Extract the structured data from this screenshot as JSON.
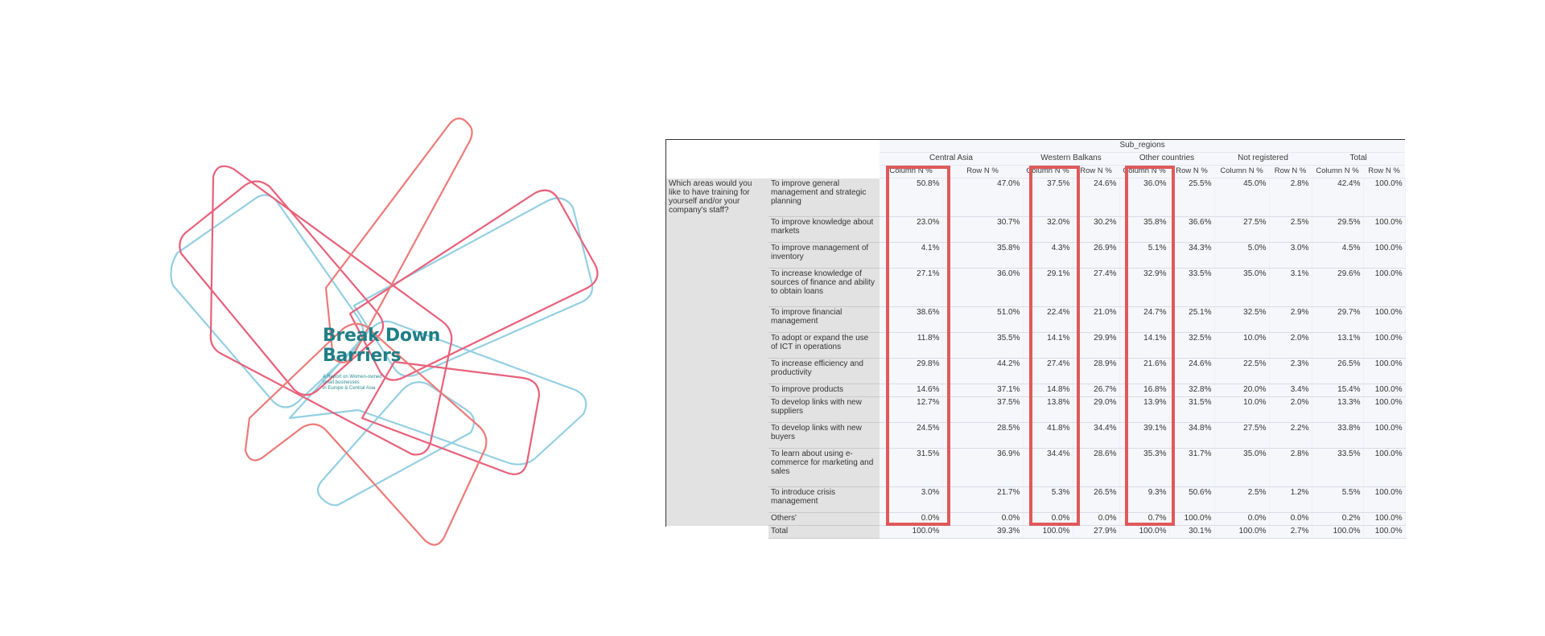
{
  "brand": {
    "title_line1": "Break Down",
    "title_line2": "Barriers",
    "subtitle_lines": [
      "A Report on Women-owned",
      "small businesses",
      "in Europe & Central Asia"
    ],
    "colors": {
      "teal": "#1f7f86",
      "pink": "#e8607a",
      "blue": "#93cfe3",
      "coral": "#ec7a78"
    }
  },
  "table": {
    "top_header": "Sub_regions",
    "regions": [
      "Central Asia",
      "Western Balkans",
      "Other countries",
      "Not registered",
      "Total"
    ],
    "col_headers": [
      "Column N %",
      "Row N %"
    ],
    "question": "Which areas would you like to have training for yourself and/or your company's staff?",
    "rows": [
      {
        "label": "To improve general management and strategic planning",
        "values": [
          "50.8%",
          "47.0%",
          "37.5%",
          "24.6%",
          "36.0%",
          "25.5%",
          "45.0%",
          "2.8%",
          "42.4%",
          "100.0%"
        ]
      },
      {
        "label": "To improve knowledge about markets",
        "values": [
          "23.0%",
          "30.7%",
          "32.0%",
          "30.2%",
          "35.8%",
          "36.6%",
          "27.5%",
          "2.5%",
          "29.5%",
          "100.0%"
        ]
      },
      {
        "label": "To improve management of inventory",
        "values": [
          "4.1%",
          "35.8%",
          "4.3%",
          "26.9%",
          "5.1%",
          "34.3%",
          "5.0%",
          "3.0%",
          "4.5%",
          "100.0%"
        ]
      },
      {
        "label": "To increase knowledge of sources of finance and ability to obtain loans",
        "values": [
          "27.1%",
          "36.0%",
          "29.1%",
          "27.4%",
          "32.9%",
          "33.5%",
          "35.0%",
          "3.1%",
          "29.6%",
          "100.0%"
        ]
      },
      {
        "label": "To improve financial management",
        "values": [
          "38.6%",
          "51.0%",
          "22.4%",
          "21.0%",
          "24.7%",
          "25.1%",
          "32.5%",
          "2.9%",
          "29.7%",
          "100.0%"
        ]
      },
      {
        "label": "To adopt or expand the use of ICT in operations",
        "values": [
          "11.8%",
          "35.5%",
          "14.1%",
          "29.9%",
          "14.1%",
          "32.5%",
          "10.0%",
          "2.0%",
          "13.1%",
          "100.0%"
        ]
      },
      {
        "label": "To increase efficiency and productivity",
        "values": [
          "29.8%",
          "44.2%",
          "27.4%",
          "28.9%",
          "21.6%",
          "24.6%",
          "22.5%",
          "2.3%",
          "26.5%",
          "100.0%"
        ]
      },
      {
        "label": "To improve products",
        "values": [
          "14.6%",
          "37.1%",
          "14.8%",
          "26.7%",
          "16.8%",
          "32.8%",
          "20.0%",
          "3.4%",
          "15.4%",
          "100.0%"
        ]
      },
      {
        "label": "To develop links with new suppliers",
        "values": [
          "12.7%",
          "37.5%",
          "13.8%",
          "29.0%",
          "13.9%",
          "31.5%",
          "10.0%",
          "2.0%",
          "13.3%",
          "100.0%"
        ]
      },
      {
        "label": "To develop links with new buyers",
        "values": [
          "24.5%",
          "28.5%",
          "41.8%",
          "34.4%",
          "39.1%",
          "34.8%",
          "27.5%",
          "2.2%",
          "33.8%",
          "100.0%"
        ]
      },
      {
        "label": "To learn about using e-commerce for marketing and sales",
        "values": [
          "31.5%",
          "36.9%",
          "34.4%",
          "28.6%",
          "35.3%",
          "31.7%",
          "35.0%",
          "2.8%",
          "33.5%",
          "100.0%"
        ]
      },
      {
        "label": "To introduce crisis management",
        "values": [
          "3.0%",
          "21.7%",
          "5.3%",
          "26.5%",
          "9.3%",
          "50.6%",
          "2.5%",
          "1.2%",
          "5.5%",
          "100.0%"
        ]
      },
      {
        "label": "Others'",
        "values": [
          "0.0%",
          "0.0%",
          "0.0%",
          "0.0%",
          "0.7%",
          "100.0%",
          "0.0%",
          "0.0%",
          "0.2%",
          "100.0%"
        ]
      },
      {
        "label": "Total",
        "values": [
          "100.0%",
          "39.3%",
          "100.0%",
          "27.9%",
          "100.0%",
          "30.1%",
          "100.0%",
          "2.7%",
          "100.0%",
          "100.0%"
        ]
      }
    ],
    "highlight_color": "#e0595a"
  }
}
